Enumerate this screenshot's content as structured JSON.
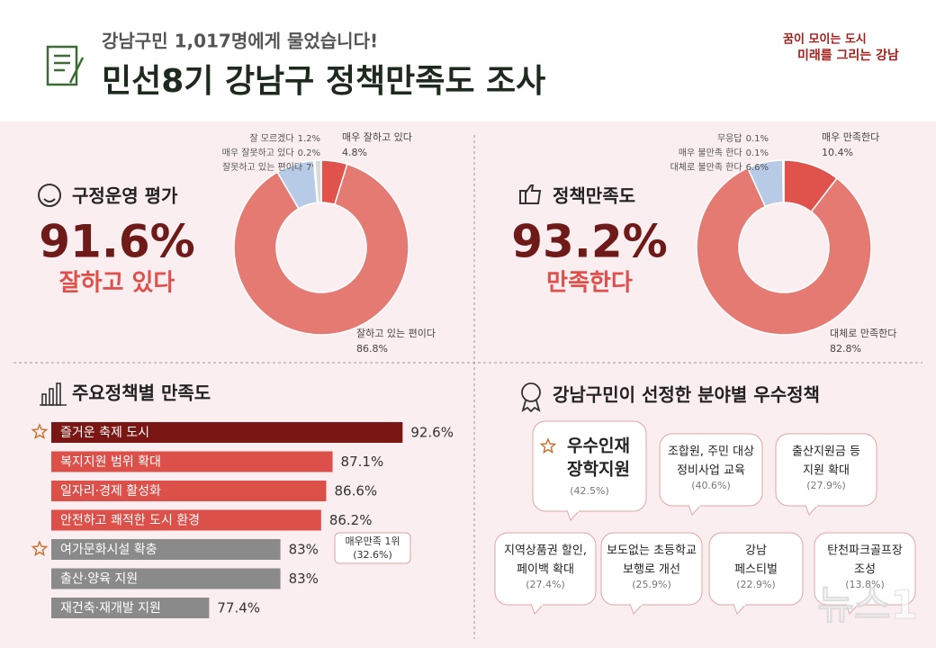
{
  "header": {
    "subtitle": "강남구민 1,017명에게 물었습니다!",
    "title": "민선8기 강남구 정책만족도 조사",
    "logo_top": "꿈이 모이는 도시",
    "logo_bottom": "미래를 그리는 강남"
  },
  "chart_data": [
    {
      "type": "donut",
      "title": "구정운영 평가",
      "headline": "91.6%",
      "headline_sub": "잘하고 있다",
      "categories": [
        "매우 잘하고 있다",
        "잘하고 있는 편이다",
        "잘못하고 있는 편이다",
        "매우 잘못하고 있다",
        "잘 모르겠다"
      ],
      "values": [
        4.8,
        86.8,
        7,
        0.2,
        1.2
      ],
      "value_labels": [
        "4.8%",
        "86.8%",
        "7%",
        "0.2%",
        "1.2%"
      ],
      "colors": [
        "#e0524c",
        "#e57a72",
        "#b8cbe6",
        "#7f93b8",
        "#d9d9d9"
      ]
    },
    {
      "type": "donut",
      "title": "정책만족도",
      "headline": "93.2%",
      "headline_sub": "만족한다",
      "categories": [
        "매우 만족한다",
        "대체로 만족한다",
        "대체로 불만족 한다",
        "매우 불만족 한다",
        "무응답"
      ],
      "values": [
        10.4,
        82.8,
        6.6,
        0.1,
        0.1
      ],
      "value_labels": [
        "10.4%",
        "82.8%",
        "6.6%",
        "0.1%",
        "0.1%"
      ],
      "colors": [
        "#e0524c",
        "#e57a72",
        "#b8cbe6",
        "#7f93b8",
        "#d9d9d9"
      ]
    },
    {
      "type": "hbar",
      "title": "주요정책별 만족도",
      "categories": [
        "즐거운 축제 도시",
        "복지지원 범위 확대",
        "일자리·경제 활성화",
        "안전하고 쾌적한 도시 환경",
        "여가문화시설 확충",
        "출산·양육 지원",
        "재건축·재개발 지원"
      ],
      "values": [
        92.6,
        87.1,
        86.6,
        86.2,
        83,
        83,
        77.4
      ],
      "value_labels": [
        "92.6%",
        "87.1%",
        "86.6%",
        "86.2%",
        "83%",
        "83%",
        "77.4%"
      ],
      "colors": [
        "#7a1714",
        "#dc504a",
        "#dc504a",
        "#dc504a",
        "#8a8a8a",
        "#8a8a8a",
        "#8a8a8a"
      ],
      "xlim": [
        65,
        93
      ],
      "annotation": [
        "매우만족 1위",
        "(32.6%)"
      ]
    }
  ],
  "best_policies": {
    "title": "강남구민이 선정한 분야별 우수정책",
    "items": [
      {
        "lines": [
          "우수인재",
          "장학지원"
        ],
        "share": "(42.5%)"
      },
      {
        "lines": [
          "조합원, 주민 대상",
          "정비사업 교육"
        ],
        "share": "(40.6%)"
      },
      {
        "lines": [
          "출산지원금 등",
          "지원 확대"
        ],
        "share": "(27.9%)"
      },
      {
        "lines": [
          "지역상품권 할인,",
          "페이백 확대"
        ],
        "share": "(27.4%)"
      },
      {
        "lines": [
          "보도없는 초등학교",
          "보행로 개선"
        ],
        "share": "(25.9%)"
      },
      {
        "lines": [
          "강남",
          "페스티벌"
        ],
        "share": "(22.9%)"
      },
      {
        "lines": [
          "탄천파크골프장",
          "조성"
        ],
        "share": "(13.8%)"
      }
    ]
  },
  "watermark": "뉴스1"
}
